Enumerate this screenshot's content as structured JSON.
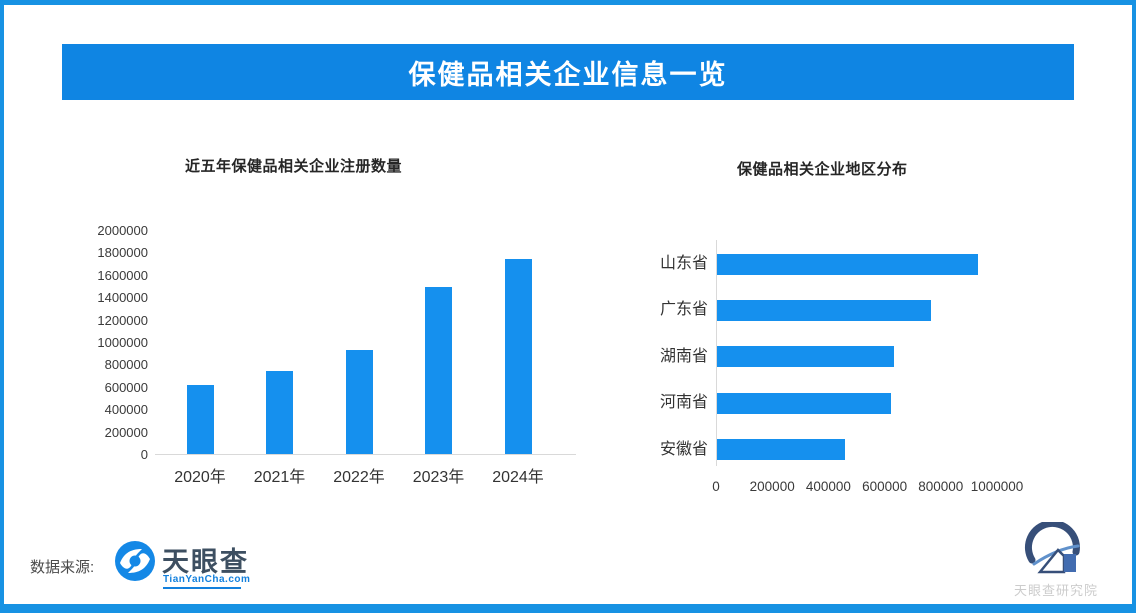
{
  "page": {
    "border_color": "#1792e3",
    "background": "#ffffff"
  },
  "header": {
    "title": "保健品相关企业信息一览",
    "bg_color": "#0f85e3",
    "text_color": "#ffffff"
  },
  "chart_data": [
    {
      "type": "bar",
      "title": "近五年保健品相关企业注册数量",
      "categories": [
        "2020年",
        "2021年",
        "2022年",
        "2023年",
        "2024年"
      ],
      "values": [
        620000,
        740000,
        930000,
        1490000,
        1740000
      ],
      "ylim": [
        0,
        2000000
      ],
      "ytick_step": 200000,
      "bar_color": "#1590ee",
      "axis_color": "#d9d9d9",
      "grid": false,
      "legend": "none"
    },
    {
      "type": "bar-horizontal",
      "title": "保健品相关企业地区分布",
      "categories": [
        "山东省",
        "广东省",
        "湖南省",
        "河南省",
        "安徽省"
      ],
      "values": [
        930000,
        760000,
        630000,
        620000,
        455000
      ],
      "xlim": [
        0,
        1000000
      ],
      "xtick_step": 200000,
      "bar_color": "#1590ee",
      "axis_color": "#d9d9d9",
      "grid": false,
      "legend": "none"
    }
  ],
  "footer": {
    "source_label": "数据来源:",
    "brand": "天眼查",
    "brand_domain": "TianYanCha.com"
  },
  "watermark": {
    "text": "天眼查研究院"
  }
}
